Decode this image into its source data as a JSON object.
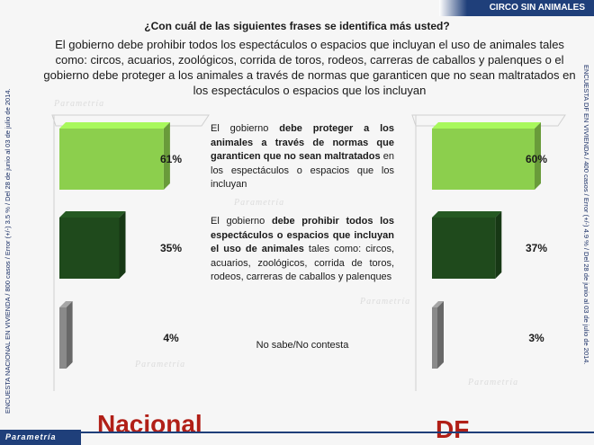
{
  "header": {
    "banner": "CIRCO SIN ANIMALES",
    "question": "¿Con cuál de las siguientes frases se identifica más usted?",
    "statement": "El gobierno debe prohibir todos los espectáculos o espacios que incluyan el uso de animales tales como: circos, acuarios, zoológicos, corrida de toros, rodeos, carreras de caballos y palenques o el gobierno debe proteger a los animales a través de normas que garanticen que no sean maltratados en los espectáculos o espacios que los incluyan"
  },
  "side_notes": {
    "left": "ENCUESTA NACIONAL EN VIVIENDA / 800 casos / Error (+/-) 3.5 % / Del 28 de junio al 03 de julio de 2014.",
    "right": "ENCUESTA DF EN VIVIENDA / 400 casos / Error (+/-) 4.9 % / Del 28 de junio al 03 de julio de 2014."
  },
  "options": [
    {
      "pre": "El gobierno ",
      "bold": "debe proteger a los animales a través de normas que garanticen que no sean maltratados",
      "post": " en los espectáculos o espacios que los incluyan"
    },
    {
      "pre": "El gobierno ",
      "bold": "debe prohibir todos los espectáculos o espacios que incluyan el uso de animales",
      "post": " tales como: circos, acuarios, zoológicos, corrida de toros, rodeos, carreras de caballos y palenques"
    },
    {
      "pre": "",
      "bold": "",
      "post": "No sabe/No contesta"
    }
  ],
  "chart_data": [
    {
      "type": "bar",
      "title": "Nacional",
      "categories": [
        "debe proteger a los animales",
        "debe prohibir todos los espectáculos",
        "No sabe/No contesta"
      ],
      "values": [
        61,
        35,
        4
      ],
      "data_labels": [
        "61%",
        "35%",
        "4%"
      ],
      "colors": [
        "#8ccf4d",
        "#1f4a1c",
        "#8a8a8a"
      ],
      "unit": "%"
    },
    {
      "type": "bar",
      "title": "DF",
      "categories": [
        "debe proteger a los animales",
        "debe prohibir todos los espectáculos",
        "No sabe/No contesta"
      ],
      "values": [
        60,
        37,
        3
      ],
      "data_labels": [
        "60%",
        "37%",
        "3%"
      ],
      "colors": [
        "#8ccf4d",
        "#1f4a1c",
        "#8a8a8a"
      ],
      "unit": "%"
    }
  ],
  "footer": {
    "nacional_label": "Nacional",
    "df_label": "DF",
    "brand": "Parametría"
  }
}
